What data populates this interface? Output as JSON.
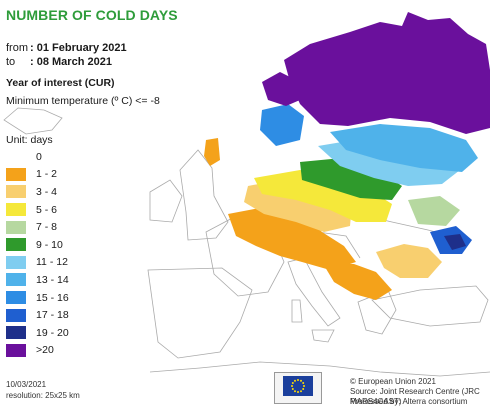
{
  "title": "NUMBER OF COLD DAYS",
  "period": {
    "from_label": "from",
    "from_value": ": 01 February 2021",
    "to_label": "to",
    "to_value": ": 08 March 2021"
  },
  "year_of_interest": "Year of interest (CUR)",
  "condition": "Minimum temperature (º C) <= -8",
  "legend": {
    "unit": "Unit: days",
    "items": [
      {
        "label": "0",
        "color": "#ffffff"
      },
      {
        "label": "1 - 2",
        "color": "#f4a21a"
      },
      {
        "label": "3 - 4",
        "color": "#f8cf6f"
      },
      {
        "label": "5 - 6",
        "color": "#f5e83a"
      },
      {
        "label": "7 - 8",
        "color": "#b6d8a0"
      },
      {
        "label": "9 - 10",
        "color": "#2f9a2c"
      },
      {
        "label": "11 - 12",
        "color": "#7fcdf0"
      },
      {
        "label": "13 - 14",
        "color": "#4fb2ea"
      },
      {
        "label": "15 - 16",
        "color": "#2e8de4"
      },
      {
        "label": "17 - 18",
        "color": "#1f5fd0"
      },
      {
        "label": "19 - 20",
        "color": "#1e2f8a"
      },
      {
        "label": ">20",
        "color": "#6a109c"
      }
    ]
  },
  "footer": {
    "date": "10/03/2021",
    "resolution": "resolution: 25x25 km",
    "copyright": "© European Union 2021",
    "source": "Source: Joint Research Centre (JRC MARS4CAST)",
    "processed": "Processed by: Alterra consortium"
  },
  "colors": {
    "title": "#2e9c3a",
    "land_outline": "#aaaaaa",
    "sea": "#ffffff",
    "eu_flag": "#1b3f9c",
    "eu_star": "#ffdd00"
  }
}
